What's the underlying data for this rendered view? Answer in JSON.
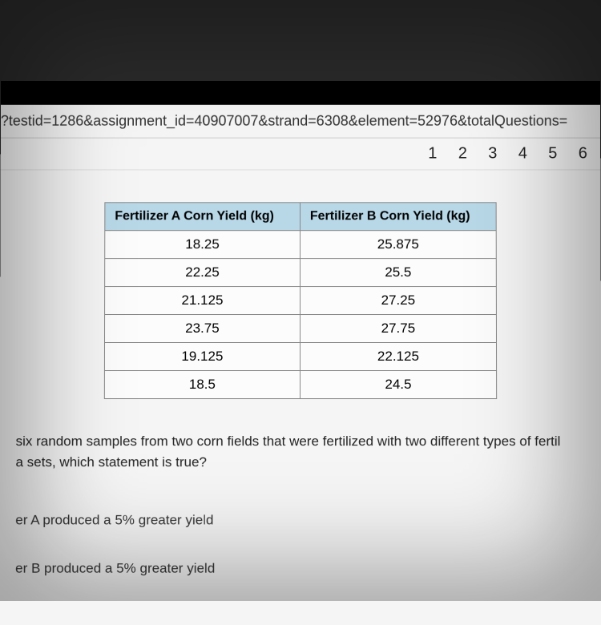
{
  "urlbar": {
    "text": "?testid=1286&assignment_id=40907007&strand=6308&element=52976&totalQuestions="
  },
  "pagination": {
    "items": [
      "1",
      "2",
      "3",
      "4",
      "5",
      "6"
    ]
  },
  "table": {
    "headers": [
      "Fertilizer A Corn Yield (kg)",
      "Fertilizer B Corn Yield (kg)"
    ],
    "rows": [
      [
        "18.25",
        "25.875"
      ],
      [
        "22.25",
        "25.5"
      ],
      [
        "21.125",
        "27.25"
      ],
      [
        "23.75",
        "27.75"
      ],
      [
        "19.125",
        "22.125"
      ],
      [
        "18.5",
        "24.5"
      ]
    ],
    "header_bg": "#b8d8e8",
    "border_color": "#888888",
    "cell_bg": "#fcfcfc"
  },
  "question": {
    "line1": "six random samples from two corn fields that were fertilized with two different types of fertil",
    "line2": "a sets, which statement is true?"
  },
  "answers": {
    "a": "er A produced a 5% greater yield",
    "b": "er B produced a 5% greater yield"
  }
}
